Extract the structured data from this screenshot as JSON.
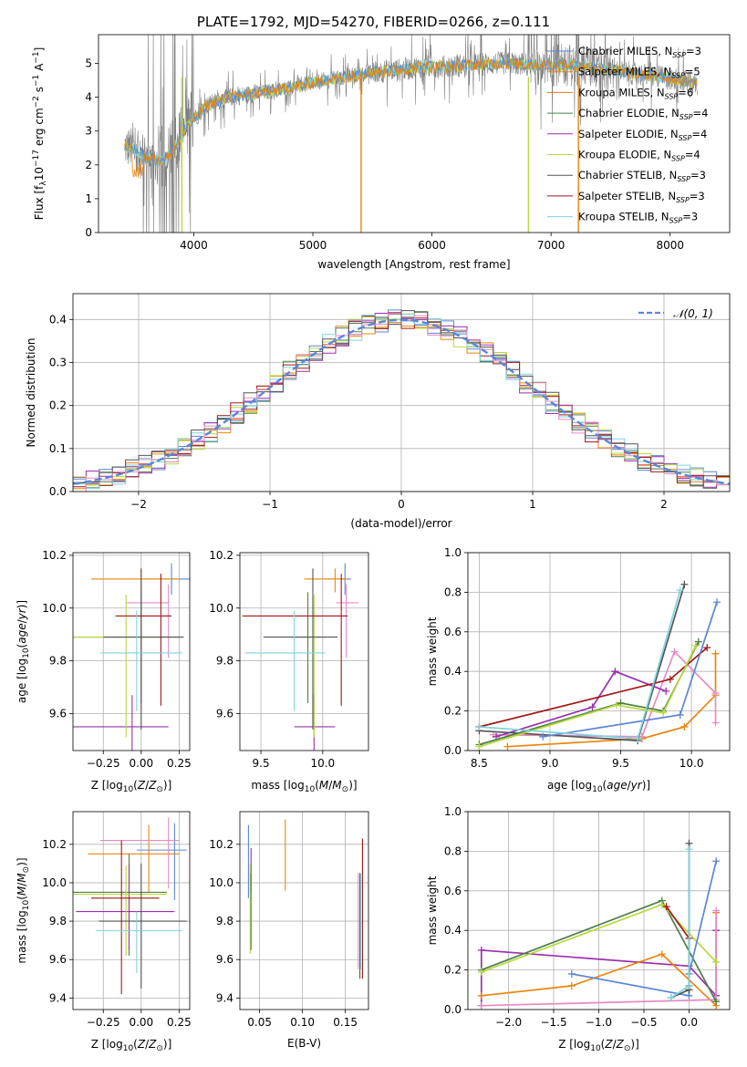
{
  "title": "PLATE=1792, MJD=54270, FIBERID=0266, z=0.111",
  "colors": {
    "c1": "#5b86d6",
    "c2": "#e8860e",
    "c3": "#dd7a1f",
    "c4": "#4f7f48",
    "c5": "#9b2fae",
    "c6": "#b6d93e",
    "c7": "#555555",
    "c8": "#a11818",
    "c9": "#7fd3e0",
    "c10": "#e78ac3",
    "data": "#808080"
  },
  "legend": [
    {
      "name": "Chabrier MILES, N_{SSP}=3",
      "color": "#5b86d6",
      "base": "Chabrier MILES, N",
      "sub": "SSP",
      "tail": "=3"
    },
    {
      "name": "Salpeter MILES, N_{SSP}=5",
      "color": "#e8860e",
      "base": "Salpeter MILES, N",
      "sub": "SSP",
      "tail": "=5"
    },
    {
      "name": "Kroupa MILES, N_{SSP}=6",
      "color": "#dd7a1f",
      "base": "Kroupa MILES, N",
      "sub": "SSP",
      "tail": "=6"
    },
    {
      "name": "Chabrier ELODIE, N_{SSP}=4",
      "color": "#4f7f48",
      "base": "Chabrier ELODIE, N",
      "sub": "SSP",
      "tail": "=4"
    },
    {
      "name": "Salpeter ELODIE, N_{SSP}=4",
      "color": "#9b2fae",
      "base": "Salpeter ELODIE, N",
      "sub": "SSP",
      "tail": "=4"
    },
    {
      "name": "Kroupa ELODIE, N_{SSP}=4",
      "color": "#b6d93e",
      "base": "Kroupa ELODIE, N",
      "sub": "SSP",
      "tail": "=4"
    },
    {
      "name": "Chabrier STELIB, N_{SSP}=3",
      "color": "#555555",
      "base": "Chabrier STELIB, N",
      "sub": "SSP",
      "tail": "=3"
    },
    {
      "name": "Salpeter STELIB, N_{SSP}=3",
      "color": "#a11818",
      "base": "Salpeter STELIB, N",
      "sub": "SSP",
      "tail": "=3"
    },
    {
      "name": "Kroupa STELIB, N_{SSP}=3",
      "color": "#7fd3e0",
      "base": "Kroupa STELIB, N",
      "sub": "SSP",
      "tail": "=3"
    }
  ],
  "chart_data": [
    {
      "id": "spectrum",
      "type": "line",
      "title": "PLATE=1792, MJD=54270, FIBERID=0266, z=0.111",
      "xlabel": "wavelength [Angstrom, rest frame]",
      "ylabel": "Flux [f_λ 10^-17 erg cm^-2 s^-1 A^-1]",
      "xlim": [
        3200,
        8500
      ],
      "ylim": [
        0,
        5.85
      ],
      "xticks": [
        4000,
        5000,
        6000,
        7000,
        8000
      ],
      "yticks": [
        0,
        1,
        2,
        3,
        4,
        5
      ],
      "series_continuum": {
        "wavelength": [
          3420,
          3500,
          3600,
          3700,
          3800,
          3900,
          4000,
          4100,
          4300,
          4500,
          4700,
          4900,
          5100,
          5300,
          5500,
          5700,
          5900,
          6100,
          6300,
          6500,
          6700,
          6900,
          7100,
          7300,
          7500,
          7700,
          7900,
          8100,
          8230
        ],
        "flux": [
          2.55,
          2.45,
          2.25,
          2.1,
          2.3,
          2.9,
          3.35,
          3.75,
          4.0,
          4.1,
          4.2,
          4.35,
          4.5,
          4.6,
          4.75,
          4.8,
          4.9,
          4.9,
          4.95,
          5.0,
          5.0,
          4.95,
          4.95,
          4.9,
          4.8,
          4.7,
          4.6,
          4.5,
          4.4
        ]
      },
      "legend_location": "upper right"
    },
    {
      "id": "residuals",
      "type": "line",
      "xlabel": "(data-model)/error",
      "ylabel": "Normed distribution",
      "xlim": [
        -2.5,
        2.5
      ],
      "ylim": [
        0,
        0.46
      ],
      "xticks": [
        -2,
        -1,
        0,
        1,
        2
      ],
      "yticks": [
        0.0,
        0.1,
        0.2,
        0.3,
        0.4
      ],
      "grid": true,
      "legend": [
        "𝒩(0, 1)"
      ],
      "legend_location": "upper right"
    },
    {
      "id": "age-vs-Z",
      "type": "scatter",
      "xlabel": "Z [log10(Z/Z☉)]",
      "ylabel": "age [log10(age/yr)]",
      "xlim": [
        -0.45,
        0.32
      ],
      "ylim": [
        9.46,
        10.21
      ],
      "xticks": [
        -0.25,
        0.0,
        0.25
      ],
      "yticks": [
        9.6,
        9.8,
        10.0,
        10.2
      ],
      "points": [
        {
          "x": 0.2,
          "y": 10.11,
          "xerr": [
            0.2,
            0.2
          ],
          "yerr": [
            0.06,
            0.06
          ],
          "color": "#5b86d6"
        },
        {
          "x": 0.0,
          "y": 10.11,
          "xerr": [
            0.33,
            0.25
          ],
          "yerr": [
            0.05,
            0.04
          ],
          "color": "#e8860e"
        },
        {
          "x": 0.18,
          "y": 10.02,
          "xerr": [
            0.28,
            0.0
          ],
          "yerr": [
            0.21,
            0.07
          ],
          "color": "#e78ac3"
        },
        {
          "x": 0.0,
          "y": 9.89,
          "xerr": [
            0.45,
            0.28
          ],
          "yerr": [
            0.25,
            0.17
          ],
          "color": "#4f7f48"
        },
        {
          "x": -0.06,
          "y": 9.55,
          "xerr": [
            0.4,
            0.24
          ],
          "yerr": [
            0.16,
            0.12
          ],
          "color": "#9b2fae"
        },
        {
          "x": -0.1,
          "y": 9.89,
          "xerr": [
            0.35,
            0.3
          ],
          "yerr": [
            0.38,
            0.16
          ],
          "color": "#b6d93e"
        },
        {
          "x": 0.0,
          "y": 9.89,
          "xerr": [
            0.25,
            0.28
          ],
          "yerr": [
            0.35,
            0.26
          ],
          "color": "#555555"
        },
        {
          "x": 0.13,
          "y": 9.97,
          "xerr": [
            0.3,
            0.07
          ],
          "yerr": [
            0.34,
            0.16
          ],
          "color": "#a11818"
        },
        {
          "x": -0.03,
          "y": 9.83,
          "xerr": [
            0.24,
            0.3
          ],
          "yerr": [
            0.22,
            0.16
          ],
          "color": "#7fd3e0"
        }
      ],
      "grid": true
    },
    {
      "id": "age-vs-mass",
      "type": "scatter",
      "xlabel": "mass [log10(M/M☉)]",
      "ylabel": "",
      "xlim": [
        9.33,
        10.37
      ],
      "ylim": [
        9.46,
        10.21
      ],
      "xticks": [
        9.5,
        10.0
      ],
      "yticks": [
        9.6,
        9.8,
        10.0,
        10.2
      ],
      "grid": true
    },
    {
      "id": "weight-vs-age",
      "type": "line",
      "xlabel": "age [log10(age/yr)]",
      "ylabel": "mass weight",
      "xlim": [
        8.42,
        10.27
      ],
      "ylim": [
        0,
        1.0
      ],
      "xticks": [
        8.5,
        9.0,
        9.5,
        10.0
      ],
      "yticks": [
        0.0,
        0.2,
        0.4,
        0.6,
        0.8,
        1.0
      ],
      "grid": true,
      "series": [
        {
          "color": "#e8860e",
          "x": [
            8.7,
            9.65,
            9.95,
            10.17,
            10.17
          ],
          "y": [
            0.02,
            0.06,
            0.12,
            0.28,
            0.49
          ]
        },
        {
          "color": "#e78ac3",
          "x": [
            8.6,
            9.65,
            9.88,
            10.17,
            10.17
          ],
          "y": [
            0.08,
            0.07,
            0.5,
            0.29,
            0.14
          ]
        },
        {
          "color": "#9b2fae",
          "x": [
            8.62,
            9.3,
            9.46,
            9.82
          ],
          "y": [
            0.07,
            0.22,
            0.4,
            0.3
          ]
        },
        {
          "color": "#a11818",
          "x": [
            8.5,
            9.85,
            10.11
          ],
          "y": [
            0.12,
            0.36,
            0.52
          ]
        },
        {
          "color": "#555555",
          "x": [
            8.5,
            9.62,
            9.95
          ],
          "y": [
            0.1,
            0.05,
            0.84
          ]
        },
        {
          "color": "#5b86d6",
          "x": [
            8.95,
            9.92,
            10.18
          ],
          "y": [
            0.07,
            0.18,
            0.75
          ]
        },
        {
          "color": "#4f7f48",
          "x": [
            8.5,
            9.5,
            9.8,
            10.05
          ],
          "y": [
            0.03,
            0.24,
            0.2,
            0.55
          ]
        },
        {
          "color": "#b6d93e",
          "x": [
            8.5,
            9.47,
            9.8,
            10.03
          ],
          "y": [
            0.02,
            0.23,
            0.19,
            0.53
          ]
        },
        {
          "color": "#7fd3e0",
          "x": [
            8.5,
            9.62,
            9.92
          ],
          "y": [
            0.12,
            0.06,
            0.81
          ]
        }
      ]
    },
    {
      "id": "mass-vs-Z",
      "type": "scatter",
      "xlabel": "Z [log10(Z/Z☉)]",
      "ylabel": "mass [log10(M/M☉)]",
      "xlim": [
        -0.45,
        0.32
      ],
      "ylim": [
        9.34,
        10.37
      ],
      "xticks": [
        -0.25,
        0.0,
        0.25
      ],
      "yticks": [
        9.4,
        9.6,
        9.8,
        10.0,
        10.2
      ],
      "grid": true
    },
    {
      "id": "mass-vs-EBV",
      "type": "scatter",
      "xlabel": "E(B-V)",
      "ylabel": "",
      "xlim": [
        0.027,
        0.177
      ],
      "ylim": [
        9.34,
        10.37
      ],
      "xticks": [
        0.05,
        0.1,
        0.15
      ],
      "yticks": [
        9.4,
        9.6,
        9.8,
        10.0,
        10.2
      ],
      "grid": true
    },
    {
      "id": "weight-vs-Z",
      "type": "line",
      "xlabel": "Z [log10(Z/Z☉)]",
      "ylabel": "mass weight",
      "xlim": [
        -2.45,
        0.45
      ],
      "ylim": [
        0,
        1.0
      ],
      "xticks": [
        -2.0,
        -1.5,
        -1.0,
        -0.5,
        0.0
      ],
      "yticks": [
        0.0,
        0.2,
        0.4,
        0.6,
        0.8,
        1.0
      ],
      "grid": true,
      "series": [
        {
          "color": "#9b2fae",
          "x": [
            -2.3,
            -2.3,
            0.0,
            0.3,
            0.3
          ],
          "y": [
            0.02,
            0.3,
            0.22,
            0.07,
            0.4
          ]
        },
        {
          "color": "#e8860e",
          "x": [
            -2.3,
            -1.3,
            -0.3,
            0.3,
            0.3
          ],
          "y": [
            0.07,
            0.12,
            0.28,
            0.02,
            0.49
          ]
        },
        {
          "color": "#e78ac3",
          "x": [
            -2.3,
            0.3,
            0.3
          ],
          "y": [
            0.02,
            0.05,
            0.5
          ]
        },
        {
          "color": "#4f7f48",
          "x": [
            -2.3,
            -0.3,
            0.3
          ],
          "y": [
            0.2,
            0.55,
            0.04
          ]
        },
        {
          "color": "#b6d93e",
          "x": [
            -2.3,
            -0.3,
            0.3
          ],
          "y": [
            0.19,
            0.53,
            0.24
          ]
        },
        {
          "color": "#5b86d6",
          "x": [
            -1.3,
            0.0,
            0.0,
            0.3
          ],
          "y": [
            0.18,
            0.07,
            0.18,
            0.75
          ]
        },
        {
          "color": "#a11818",
          "x": [
            -0.25,
            0.0,
            0.0
          ],
          "y": [
            0.52,
            0.36,
            0.12
          ]
        },
        {
          "color": "#555555",
          "x": [
            -0.2,
            0.0,
            0.0
          ],
          "y": [
            0.06,
            0.1,
            0.84
          ]
        },
        {
          "color": "#7fd3e0",
          "x": [
            -0.2,
            0.0,
            0.0
          ],
          "y": [
            0.06,
            0.12,
            0.81
          ]
        }
      ]
    }
  ]
}
